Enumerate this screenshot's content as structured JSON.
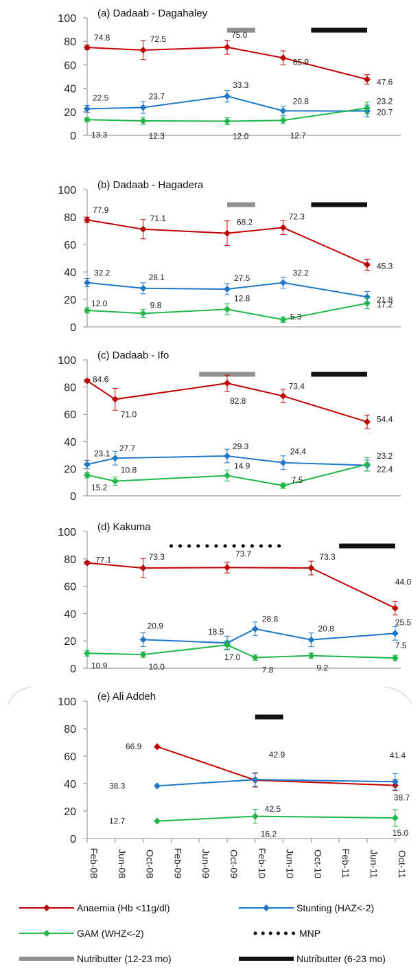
{
  "colors": {
    "anaemia": "#c00000",
    "stunting": "#1f77c8",
    "gam": "#1eb74a",
    "mnp": "#000000",
    "nb12": "#909090",
    "nb6": "#111111"
  },
  "legend": {
    "anaemia": "Anaemia (Hb <11g/dl)",
    "stunting": "Stunting (HAZ<-2)",
    "gam": "GAM (WHZ<-2)",
    "mnp": "MNP",
    "nb12": "Nutributter (12-23 mo)",
    "nb6": "Nutributter (6-23 mo)"
  },
  "chart_data": [
    {
      "type": "line",
      "title": "(a) Dadaab - Dagahaley",
      "ylim": [
        0,
        100
      ],
      "yticks": [
        0,
        20,
        40,
        60,
        80,
        100
      ],
      "series": [
        {
          "key": "anaemia",
          "x": [
            "Feb-08",
            "Oct-08",
            "Oct-09",
            "Jun-10",
            "Jun-11"
          ],
          "values": [
            74.8,
            72.5,
            75.0,
            65.9,
            47.6
          ],
          "err": [
            2,
            8,
            6,
            6,
            4
          ],
          "labels": [
            "74.8",
            "72.5",
            "75.0",
            "65.9",
            "47.6"
          ]
        },
        {
          "key": "stunting",
          "x": [
            "Feb-08",
            "Oct-08",
            "Oct-09",
            "Jun-10",
            "Jun-11"
          ],
          "values": [
            22.5,
            23.7,
            33.3,
            20.8,
            20.7
          ],
          "err": [
            3,
            5,
            5,
            4,
            5
          ],
          "labels": [
            "22.5",
            "23.7",
            "33.3",
            "20.8",
            "20.7"
          ]
        },
        {
          "key": "gam",
          "x": [
            "Feb-08",
            "Oct-08",
            "Oct-09",
            "Jun-10",
            "Jun-11"
          ],
          "values": [
            13.3,
            12.3,
            12.0,
            12.7,
            23.2
          ],
          "err": [
            2,
            3,
            3,
            3,
            5
          ],
          "labels": [
            "13.3",
            "12.3",
            "12.0",
            "12.7",
            "23.2"
          ]
        }
      ],
      "bars": [
        {
          "key": "nb12",
          "from": "Oct-09",
          "to": "Feb-10"
        },
        {
          "key": "nb6",
          "from": "Oct-10",
          "to": "Jun-11"
        }
      ]
    },
    {
      "type": "line",
      "title": "(b) Dadaab - Hagadera",
      "ylim": [
        0,
        100
      ],
      "yticks": [
        0,
        20,
        40,
        60,
        80,
        100
      ],
      "series": [
        {
          "key": "anaemia",
          "x": [
            "Feb-08",
            "Oct-08",
            "Oct-09",
            "Jun-10",
            "Jun-11"
          ],
          "values": [
            77.9,
            71.1,
            68.2,
            72.3,
            45.3
          ],
          "err": [
            2,
            7,
            9,
            5,
            4
          ],
          "labels": [
            "77.9",
            "71.1",
            "68.2",
            "72.3",
            "45.3"
          ]
        },
        {
          "key": "stunting",
          "x": [
            "Feb-08",
            "Oct-08",
            "Oct-09",
            "Jun-10",
            "Jun-11"
          ],
          "values": [
            32.2,
            28.1,
            27.5,
            32.2,
            21.8
          ],
          "err": [
            3,
            4,
            4,
            4,
            4
          ],
          "labels": [
            "32.2",
            "28.1",
            "27.5",
            "32.2",
            "21.8"
          ]
        },
        {
          "key": "gam",
          "x": [
            "Feb-08",
            "Oct-08",
            "Oct-09",
            "Jun-10",
            "Jun-11"
          ],
          "values": [
            12.0,
            9.8,
            12.8,
            5.3,
            17.2
          ],
          "err": [
            2,
            3,
            4,
            2,
            4
          ],
          "labels": [
            "12.0",
            "9.8",
            "12.8",
            "5.3",
            "17.2"
          ]
        }
      ],
      "bars": [
        {
          "key": "nb12",
          "from": "Oct-09",
          "to": "Feb-10"
        },
        {
          "key": "nb6",
          "from": "Oct-10",
          "to": "Jun-11"
        }
      ]
    },
    {
      "type": "line",
      "title": "(c) Dadaab - Ifo",
      "ylim": [
        0,
        100
      ],
      "yticks": [
        0,
        20,
        40,
        60,
        80,
        100
      ],
      "series": [
        {
          "key": "anaemia",
          "x": [
            "Feb-08",
            "Jun-08",
            "Oct-09",
            "Jun-10",
            "Jun-11"
          ],
          "values": [
            84.6,
            71.0,
            82.8,
            73.4,
            54.4
          ],
          "err": [
            1,
            8,
            6,
            5,
            5
          ],
          "labels": [
            "84.6",
            "71.0",
            "82.8",
            "73.4",
            "54.4"
          ]
        },
        {
          "key": "stunting",
          "x": [
            "Feb-08",
            "Jun-08",
            "Oct-09",
            "Jun-10",
            "Jun-11"
          ],
          "values": [
            23.1,
            27.7,
            29.3,
            24.4,
            22.4
          ],
          "err": [
            3,
            5,
            5,
            5,
            4
          ],
          "labels": [
            "23.1",
            "27.7",
            "29.3",
            "24.4",
            "22.4"
          ]
        },
        {
          "key": "gam",
          "x": [
            "Feb-08",
            "Jun-08",
            "Oct-09",
            "Jun-10",
            "Jun-11"
          ],
          "values": [
            15.2,
            10.8,
            14.9,
            7.5,
            23.2
          ],
          "err": [
            2,
            3,
            4,
            2,
            5
          ],
          "labels": [
            "15.2",
            "10.8",
            "14.9",
            "7.5",
            "23.2"
          ]
        }
      ],
      "bars": [
        {
          "key": "nb12",
          "from": "Jun-09",
          "to": "Feb-10"
        },
        {
          "key": "nb6",
          "from": "Oct-10",
          "to": "Jun-11"
        }
      ]
    },
    {
      "type": "line",
      "title": "(d) Kakuma",
      "ylim": [
        0,
        100
      ],
      "yticks": [
        0,
        20,
        40,
        60,
        80,
        100
      ],
      "series": [
        {
          "key": "anaemia",
          "x": [
            "Feb-08",
            "Oct-08",
            "Oct-09",
            "Oct-10",
            "Oct-11"
          ],
          "values": [
            77.1,
            73.3,
            73.7,
            73.3,
            44.0
          ],
          "err": [
            1,
            7,
            4,
            5,
            5
          ],
          "labels": [
            "77.1",
            "73.3",
            "73.7",
            "73.3",
            "44.0"
          ]
        },
        {
          "key": "stunting",
          "x": [
            "Oct-08",
            "Oct-09",
            "Feb-10",
            "Oct-10",
            "Oct-11"
          ],
          "values": [
            20.9,
            18.5,
            28.8,
            20.8,
            25.5
          ],
          "err": [
            5,
            5,
            5,
            5,
            5
          ],
          "labels": [
            "20.9",
            "18.5",
            "28.8",
            "20.8",
            "25.5"
          ]
        },
        {
          "key": "gam",
          "x": [
            "Feb-08",
            "Oct-08",
            "Oct-09",
            "Feb-10",
            "Oct-10",
            "Oct-11"
          ],
          "values": [
            10.9,
            10.0,
            17.0,
            7.8,
            9.2,
            7.5
          ],
          "err": [
            2,
            2,
            3,
            2,
            2,
            2
          ],
          "labels": [
            "10.9",
            "10.0",
            "17.0",
            "7.8",
            "9.2",
            "7.5"
          ]
        }
      ],
      "bars": [
        {
          "key": "mnp",
          "from": "Feb-09",
          "to": "Jun-10"
        },
        {
          "key": "nb6",
          "from": "Feb-11",
          "to": "Oct-11"
        }
      ]
    },
    {
      "type": "line",
      "title": "(e) Ali Addeh",
      "ylim": [
        0,
        100
      ],
      "yticks": [
        0,
        20,
        40,
        60,
        80,
        100
      ],
      "xticks": [
        "Feb-08",
        "Jun-08",
        "Oct-08",
        "Feb-09",
        "Jun-09",
        "Oct-09",
        "Feb-10",
        "Jun-10",
        "Oct-10",
        "Feb-11",
        "Jun-11",
        "Oct-11"
      ],
      "series": [
        {
          "key": "anaemia",
          "x": [
            "Dec-08",
            "Feb-10",
            "Oct-11"
          ],
          "values": [
            66.9,
            42.5,
            38.7
          ],
          "err": [
            0,
            5,
            4
          ],
          "labels": [
            "66.9",
            "42.5",
            "38.7"
          ]
        },
        {
          "key": "stunting",
          "x": [
            "Dec-08",
            "Feb-10",
            "Oct-11"
          ],
          "values": [
            38.3,
            42.9,
            41.4
          ],
          "err": [
            0,
            5,
            6
          ],
          "labels": [
            "38.3",
            "42.9",
            "41.4"
          ]
        },
        {
          "key": "gam",
          "x": [
            "Dec-08",
            "Feb-10",
            "Oct-11"
          ],
          "values": [
            12.7,
            16.2,
            15.0
          ],
          "err": [
            0,
            5,
            6
          ],
          "labels": [
            "12.7",
            "16.2",
            "15.0"
          ]
        }
      ],
      "bars": [
        {
          "key": "nb6",
          "from": "Feb-10",
          "to": "Jun-10"
        }
      ]
    }
  ]
}
